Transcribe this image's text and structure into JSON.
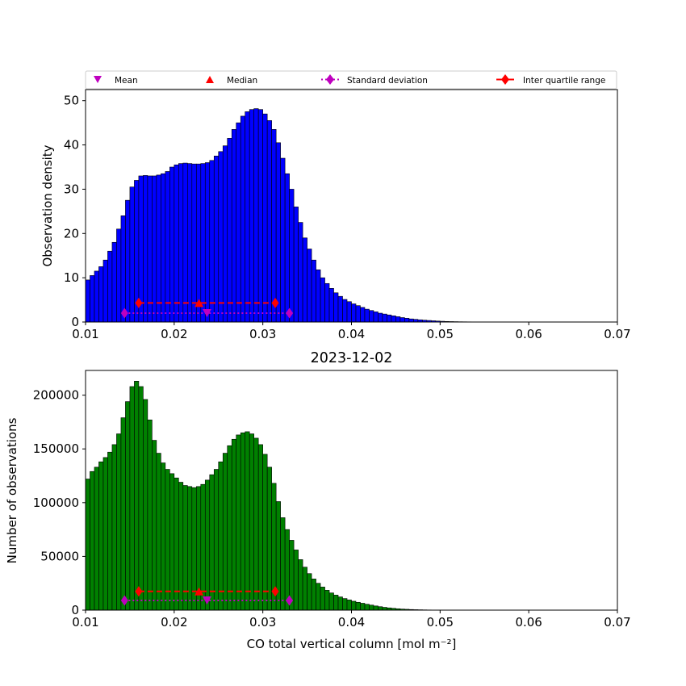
{
  "legend": {
    "items": [
      {
        "label": "Mean",
        "color": "#bf00bf",
        "marker": "triangle-down",
        "line": "none"
      },
      {
        "label": "Median",
        "color": "#ff0000",
        "marker": "triangle-up",
        "line": "none"
      },
      {
        "label": "Standard deviation",
        "color": "#bf00bf",
        "marker": "diamond",
        "line": "dotted"
      },
      {
        "label": "Inter quartile range",
        "color": "#ff0000",
        "marker": "diamond",
        "line": "solid"
      }
    ],
    "placement": "above top panel"
  },
  "chart_data": [
    {
      "type": "bar",
      "title": "",
      "xlabel": "",
      "ylabel": "Observation density",
      "xlim": [
        0.01,
        0.07
      ],
      "ylim": [
        0,
        52.5
      ],
      "xticks": [
        "0.01",
        "0.02",
        "0.03",
        "0.04",
        "0.05",
        "0.06",
        "0.07"
      ],
      "yticks": [
        "0",
        "10",
        "20",
        "30",
        "40",
        "50"
      ],
      "bar_color": "#0000ff",
      "bin_start": 0.01,
      "bin_width": 0.0005,
      "values": [
        9.5,
        10.5,
        11.5,
        12.5,
        14,
        16,
        18,
        21,
        24,
        27.5,
        30.5,
        32,
        33,
        33.1,
        33,
        33,
        33.2,
        33.5,
        34,
        35,
        35.5,
        35.8,
        35.9,
        35.8,
        35.7,
        35.7,
        35.8,
        36,
        36.5,
        37.5,
        38.5,
        39.8,
        41.5,
        43.5,
        45,
        46.5,
        47.5,
        48,
        48.2,
        48,
        47,
        45.5,
        43.5,
        40.5,
        37,
        33.5,
        30,
        26,
        22.5,
        19,
        16.5,
        14,
        11.8,
        10,
        8.7,
        7.6,
        6.6,
        5.8,
        5.1,
        4.6,
        4.1,
        3.7,
        3.3,
        2.9,
        2.6,
        2.3,
        2,
        1.8,
        1.6,
        1.4,
        1.2,
        1,
        0.85,
        0.7,
        0.6,
        0.5,
        0.42,
        0.35,
        0.28,
        0.22,
        0.17,
        0.13,
        0.1,
        0.08,
        0.06,
        0.05,
        0.04,
        0.03,
        0.02,
        0.02,
        0.01,
        0.01,
        0.01
      ],
      "stats": {
        "mean": {
          "x": 0.0237,
          "y": 2
        },
        "median": {
          "x": 0.0228,
          "y": 4.3
        },
        "std_range": {
          "x": [
            0.0144,
            0.033
          ],
          "y": 2
        },
        "iqr": {
          "x": [
            0.016,
            0.0314
          ],
          "y": 4.3
        }
      }
    },
    {
      "type": "bar",
      "title": "2023-12-02",
      "xlabel": "CO total vertical column [mol m⁻²]",
      "ylabel": "Number of observations",
      "xlim": [
        0.01,
        0.07
      ],
      "ylim": [
        0,
        223000
      ],
      "xticks": [
        "0.01",
        "0.02",
        "0.03",
        "0.04",
        "0.05",
        "0.06",
        "0.07"
      ],
      "yticks": [
        "0",
        "50000",
        "100000",
        "150000",
        "200000"
      ],
      "bar_color": "#008000",
      "bin_start": 0.01,
      "bin_width": 0.0005,
      "values": [
        122000,
        129000,
        133000,
        138000,
        142000,
        147000,
        154000,
        164000,
        179000,
        194000,
        208000,
        213000,
        208000,
        196000,
        177000,
        158000,
        146000,
        137000,
        131000,
        127000,
        123000,
        119000,
        116000,
        115000,
        114000,
        115000,
        117000,
        121000,
        126000,
        131000,
        138000,
        146000,
        153000,
        159000,
        163000,
        165000,
        166000,
        164000,
        160000,
        154000,
        145000,
        133000,
        118000,
        101000,
        86000,
        75000,
        65000,
        56000,
        47000,
        40000,
        34000,
        29000,
        25000,
        21500,
        18500,
        16000,
        14000,
        12300,
        10800,
        9500,
        8300,
        7300,
        6400,
        5500,
        4700,
        3900,
        3200,
        2600,
        2100,
        1700,
        1300,
        1000,
        800,
        600,
        450,
        350,
        250,
        180,
        120,
        80,
        50,
        30,
        20,
        10,
        10,
        5,
        5,
        0,
        0,
        0,
        0,
        0,
        0
      ],
      "stats": {
        "mean": {
          "x": 0.0237,
          "y": 9000
        },
        "median": {
          "x": 0.0228,
          "y": 17500
        },
        "std_range": {
          "x": [
            0.0144,
            0.033
          ],
          "y": 9000
        },
        "iqr": {
          "x": [
            0.016,
            0.0314
          ],
          "y": 17500
        }
      }
    }
  ]
}
